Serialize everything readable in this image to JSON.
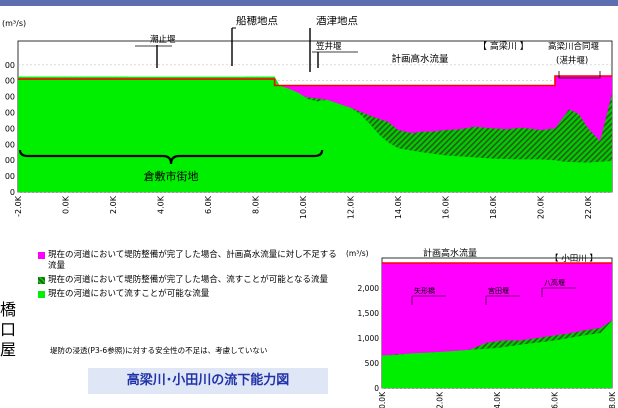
{
  "side_text": "橋口屋",
  "legend": {
    "items": [
      {
        "key": "magenta",
        "text": "現在の河道において堤防整備が完了した場合、計画高水流量に対し不足する流量",
        "color": "#ff00ff"
      },
      {
        "key": "hatched",
        "text": "現在の河道において堤防整備が完了した場合、流すことが可能となる流量",
        "color": "#2a5a1a"
      },
      {
        "key": "green",
        "text": "現在の河道において流すことが可能な流量",
        "color": "#00ee00"
      }
    ]
  },
  "note": "堤防の浸透(P3-6参照)に対する安全性の不足は、考慮していない",
  "figure_title": "高梁川･小田川の流下能力図",
  "chart_data": [
    {
      "type": "area",
      "river_tag": "【 高梁川 】",
      "ylabel": "(m³/s)",
      "grid": true,
      "xlim": [
        -2.0,
        23.0
      ],
      "ylim": [
        0,
        9500
      ],
      "x_ticks": [
        "-2.0K",
        "0.0K",
        "2.0K",
        "4.0K",
        "6.0K",
        "8.0K",
        "10.0K",
        "12.0K",
        "14.0K",
        "16.0K",
        "18.0K",
        "20.0K",
        "22.0K"
      ],
      "y_ticks": [
        {
          "v": 8000,
          "t": "00"
        },
        {
          "v": 7000,
          "t": "00"
        },
        {
          "v": 6000,
          "t": "00"
        },
        {
          "v": 5000,
          "t": "00"
        },
        {
          "v": 4000,
          "t": "00"
        },
        {
          "v": 3000,
          "t": "00"
        },
        {
          "v": 2000,
          "t": "00"
        },
        {
          "v": 1000,
          "t": "00"
        },
        {
          "v": 0,
          "t": "0"
        }
      ],
      "plan_label": "計画高水流量",
      "plan_flow": [
        [
          -2.0,
          7100
        ],
        [
          8.8,
          7100
        ],
        [
          8.8,
          6700
        ],
        [
          20.6,
          6700
        ],
        [
          20.6,
          7300
        ],
        [
          23.0,
          7300
        ]
      ],
      "green_top": [
        [
          -2.0,
          7250
        ],
        [
          0.0,
          7250
        ],
        [
          2.0,
          7250
        ],
        [
          4.0,
          7250
        ],
        [
          6.0,
          7250
        ],
        [
          7.0,
          7250
        ],
        [
          8.8,
          7250
        ],
        [
          9.0,
          6700
        ],
        [
          9.4,
          6500
        ],
        [
          9.8,
          6250
        ],
        [
          10.2,
          5850
        ],
        [
          10.6,
          5700
        ],
        [
          11.0,
          5800
        ],
        [
          11.6,
          5500
        ],
        [
          12.0,
          5300
        ],
        [
          12.4,
          4900
        ],
        [
          12.8,
          4300
        ],
        [
          13.2,
          3600
        ],
        [
          13.6,
          3100
        ],
        [
          14.0,
          2750
        ],
        [
          15.0,
          2500
        ],
        [
          16.0,
          2300
        ],
        [
          17.0,
          2200
        ],
        [
          18.0,
          2100
        ],
        [
          19.0,
          2050
        ],
        [
          20.0,
          2050
        ],
        [
          20.6,
          2000
        ],
        [
          21.0,
          1900
        ],
        [
          22.0,
          1850
        ],
        [
          22.5,
          1900
        ],
        [
          23.0,
          1950
        ]
      ],
      "hatched_top": [
        [
          -2.0,
          7250
        ],
        [
          2.6,
          7250
        ],
        [
          3.0,
          7150
        ],
        [
          3.6,
          7000
        ],
        [
          4.2,
          6300
        ],
        [
          5.0,
          5800
        ],
        [
          5.8,
          6000
        ],
        [
          6.2,
          6600
        ],
        [
          6.8,
          7050
        ],
        [
          7.6,
          7250
        ],
        [
          8.8,
          7250
        ],
        [
          9.0,
          6700
        ],
        [
          10.0,
          6000
        ],
        [
          11.0,
          5800
        ],
        [
          12.0,
          5300
        ],
        [
          13.0,
          4700
        ],
        [
          13.6,
          4400
        ],
        [
          14.0,
          3900
        ],
        [
          14.6,
          3700
        ],
        [
          15.0,
          3800
        ],
        [
          15.4,
          3800
        ],
        [
          16.0,
          3900
        ],
        [
          16.6,
          3950
        ],
        [
          17.2,
          4100
        ],
        [
          18.0,
          4000
        ],
        [
          18.6,
          3950
        ],
        [
          19.2,
          4050
        ],
        [
          20.0,
          3900
        ],
        [
          20.6,
          4000
        ],
        [
          21.2,
          5200
        ],
        [
          21.6,
          4900
        ],
        [
          22.0,
          4000
        ],
        [
          22.5,
          3200
        ],
        [
          23.0,
          6200
        ]
      ],
      "annotations": [
        {
          "x": 1.3,
          "text": "潮止堰"
        },
        {
          "x": 7.5,
          "text": "船穂地点"
        },
        {
          "x": 11.2,
          "text": "酒津地点"
        },
        {
          "x": 12.8,
          "text": "笠井堰"
        },
        {
          "x": 22.0,
          "text": "高梁川合同堰"
        },
        {
          "x": 22.0,
          "text": "(湛井堰)"
        }
      ],
      "brace_label": "倉敷市街地",
      "brace_range": [
        -2.0,
        10.8
      ]
    },
    {
      "type": "area",
      "river_tag": "【 小田川 】",
      "ylabel": "(m³/s)",
      "grid": true,
      "xlim": [
        0.0,
        8.0
      ],
      "ylim": [
        0,
        2600
      ],
      "x_ticks": [
        "0.0K",
        "2.0K",
        "4.0K",
        "6.0K",
        "8.0K"
      ],
      "y_ticks": [
        {
          "v": 2000,
          "t": "2,000"
        },
        {
          "v": 1500,
          "t": "1,500"
        },
        {
          "v": 1000,
          "t": "1,000"
        },
        {
          "v": 500,
          "t": "500"
        },
        {
          "v": 0,
          "t": "0"
        }
      ],
      "plan_label": "計画高水流量",
      "plan_flow": [
        [
          0.0,
          2500
        ],
        [
          8.0,
          2500
        ]
      ],
      "green_top": [
        [
          0.0,
          650
        ],
        [
          0.5,
          660
        ],
        [
          1.0,
          690
        ],
        [
          2.0,
          720
        ],
        [
          3.0,
          760
        ],
        [
          4.0,
          800
        ],
        [
          5.0,
          880
        ],
        [
          6.0,
          950
        ],
        [
          7.0,
          1050
        ],
        [
          7.6,
          1100
        ],
        [
          8.0,
          1350
        ]
      ],
      "hatched_top": [
        [
          0.0,
          650
        ],
        [
          1.0,
          690
        ],
        [
          2.0,
          720
        ],
        [
          3.0,
          760
        ],
        [
          3.2,
          800
        ],
        [
          3.6,
          900
        ],
        [
          4.2,
          950
        ],
        [
          4.8,
          950
        ],
        [
          5.4,
          1000
        ],
        [
          6.0,
          1050
        ],
        [
          6.6,
          1100
        ],
        [
          7.0,
          1150
        ],
        [
          7.6,
          1200
        ],
        [
          8.0,
          1350
        ]
      ],
      "annotations": [
        {
          "x": 1.6,
          "text": "矢形橋"
        },
        {
          "x": 4.2,
          "text": "宮田堰"
        },
        {
          "x": 6.8,
          "text": "八高堰"
        }
      ]
    }
  ]
}
